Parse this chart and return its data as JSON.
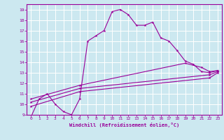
{
  "xlabel": "Windchill (Refroidissement éolien,°C)",
  "line_color": "#990099",
  "bg_color": "#cce8f0",
  "grid_color": "#ffffff",
  "xlim": [
    -0.5,
    23.5
  ],
  "ylim": [
    9,
    19.5
  ],
  "xticks": [
    0,
    1,
    2,
    3,
    4,
    5,
    6,
    7,
    8,
    9,
    10,
    11,
    12,
    13,
    14,
    15,
    16,
    17,
    18,
    19,
    20,
    21,
    22,
    23
  ],
  "yticks": [
    9,
    10,
    11,
    12,
    13,
    14,
    15,
    16,
    17,
    18,
    19
  ],
  "curve1_x": [
    0,
    1,
    2,
    3,
    4,
    5,
    6,
    7,
    8,
    9,
    10,
    11,
    12,
    13,
    14,
    15,
    16,
    17,
    18,
    19,
    20,
    21,
    22,
    23
  ],
  "curve1_y": [
    8.8,
    10.5,
    11.0,
    10.0,
    9.3,
    9.0,
    10.5,
    16.0,
    16.5,
    17.0,
    18.8,
    19.0,
    18.5,
    17.5,
    17.5,
    17.8,
    16.3,
    16.0,
    15.1,
    14.1,
    13.8,
    13.1,
    13.0,
    13.2
  ],
  "curve2_x": [
    0,
    6,
    19,
    21,
    22,
    23
  ],
  "curve2_y": [
    10.5,
    11.8,
    13.9,
    13.5,
    13.1,
    13.2
  ],
  "curve3_x": [
    0,
    6,
    22,
    23
  ],
  "curve3_y": [
    10.2,
    11.5,
    12.8,
    13.1
  ],
  "curve4_x": [
    0,
    6,
    22,
    23
  ],
  "curve4_y": [
    9.8,
    11.2,
    12.5,
    13.0
  ]
}
